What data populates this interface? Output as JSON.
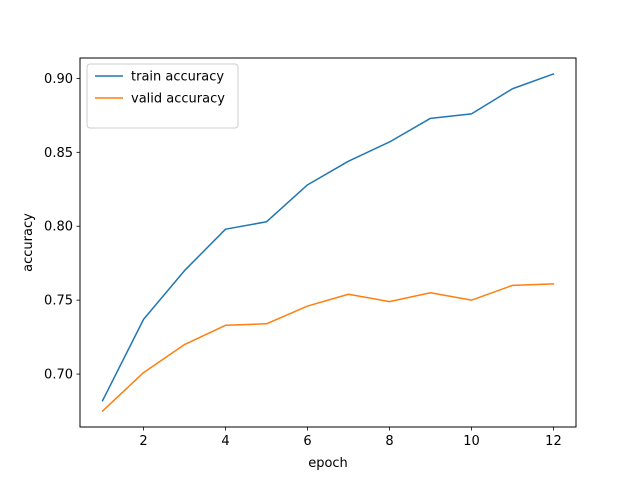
{
  "chart_data": {
    "type": "line",
    "x": [
      1,
      2,
      3,
      4,
      5,
      6,
      7,
      8,
      9,
      10,
      11,
      12
    ],
    "series": [
      {
        "name": "train accuracy",
        "color": "#1f77b4",
        "values": [
          0.682,
          0.737,
          0.77,
          0.798,
          0.803,
          0.828,
          0.844,
          0.857,
          0.873,
          0.876,
          0.893,
          0.903
        ]
      },
      {
        "name": "valid accuracy",
        "color": "#ff7f0e",
        "values": [
          0.675,
          0.701,
          0.72,
          0.733,
          0.734,
          0.746,
          0.754,
          0.749,
          0.755,
          0.75,
          0.76,
          0.761
        ]
      }
    ],
    "xlabel": "epoch",
    "ylabel": "accuracy",
    "title": "",
    "xlim": [
      0.45,
      12.55
    ],
    "ylim": [
      0.6642,
      0.9138
    ],
    "xticks": [
      2,
      4,
      6,
      8,
      10,
      12
    ],
    "yticks": [
      0.7,
      0.75,
      0.8,
      0.85,
      0.9
    ],
    "xtick_labels": [
      "2",
      "4",
      "6",
      "8",
      "10",
      "12"
    ],
    "ytick_labels": [
      "0.70",
      "0.75",
      "0.80",
      "0.85",
      "0.90"
    ],
    "grid": false,
    "legend": {
      "placement": "top-left",
      "entries": [
        "train accuracy",
        "valid accuracy"
      ]
    }
  }
}
